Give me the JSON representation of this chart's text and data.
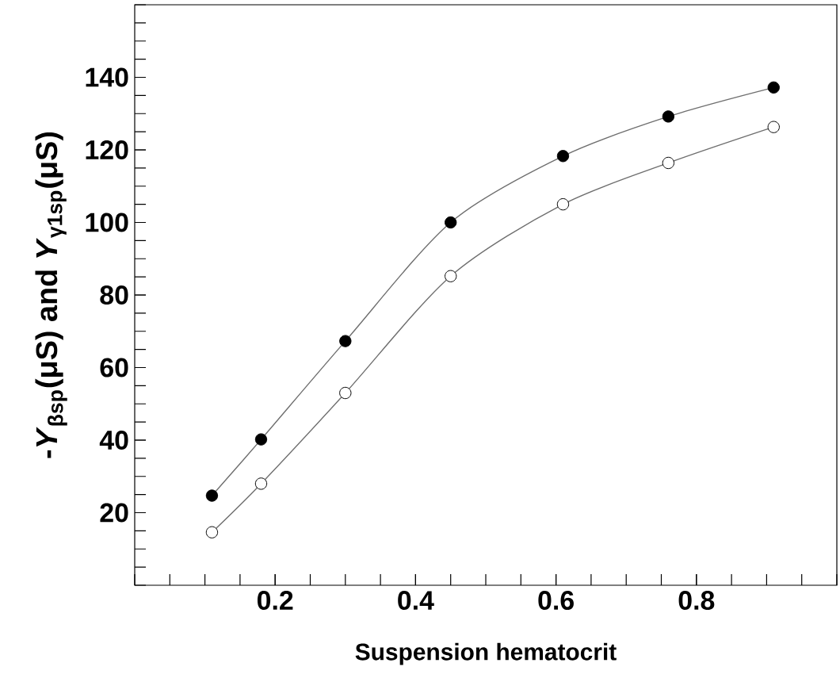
{
  "chart_data": {
    "type": "line",
    "xlabel": "Suspension hematocrit",
    "ylabel": "-*Y*$_{βsp}$(μS) and *Y*$_{γ1sp}$(μS)",
    "x": [
      0.11,
      0.18,
      0.3,
      0.45,
      0.61,
      0.76,
      0.91
    ],
    "series": [
      {
        "color": "#000000",
        "values": [
          24.7,
          40.2,
          67.3,
          100,
          118.3,
          129.2,
          137.2
        ]
      },
      {
        "color": "#ffffff",
        "values": [
          14.6,
          28,
          53,
          85.2,
          105,
          116.4,
          126.3
        ]
      }
    ],
    "xlim": [
      0,
      1
    ],
    "ylim": [
      0,
      160
    ],
    "xticks": [
      0.2,
      0.4,
      0.6,
      0.8
    ],
    "yticks": [
      20,
      40,
      60,
      80,
      100,
      120,
      140
    ],
    "marker": "circle"
  }
}
